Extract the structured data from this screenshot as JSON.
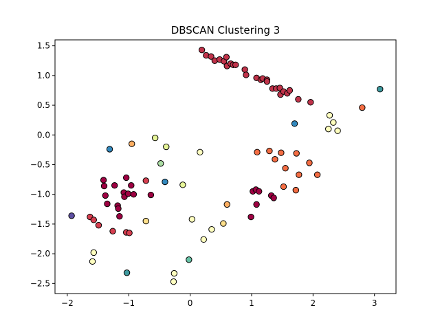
{
  "chart_data": {
    "type": "scatter",
    "title": "DBSCAN Clustering 3",
    "xlabel": "",
    "ylabel": "",
    "xlim": [
      -2.2,
      3.35
    ],
    "ylim": [
      -2.67,
      1.6
    ],
    "xticks": [
      -2,
      -1,
      0,
      1,
      2,
      3
    ],
    "yticks": [
      -2.5,
      -2.0,
      -1.5,
      -1.0,
      -0.5,
      0.0,
      0.5,
      1.0,
      1.5
    ],
    "xtick_labels": [
      "−2",
      "−1",
      "0",
      "1",
      "2",
      "3"
    ],
    "ytick_labels": [
      "−2.5",
      "−2.0",
      "−1.5",
      "−1.0",
      "−0.5",
      "0.0",
      "0.5",
      "1.0",
      "1.5"
    ],
    "grid": false,
    "legend": false,
    "marker_edge_color": "#000000",
    "series": [
      {
        "color": "#c0334a",
        "points": [
          [
            0.19,
            1.43
          ],
          [
            0.26,
            1.34
          ],
          [
            0.34,
            1.32
          ],
          [
            0.4,
            1.25
          ],
          [
            0.48,
            1.27
          ],
          [
            0.55,
            1.24
          ],
          [
            0.59,
            1.31
          ],
          [
            0.6,
            1.16
          ],
          [
            0.66,
            1.2
          ],
          [
            0.7,
            1.18
          ],
          [
            0.74,
            1.18
          ],
          [
            0.89,
            1.1
          ],
          [
            0.91,
            1.01
          ],
          [
            1.08,
            0.96
          ],
          [
            1.15,
            0.93
          ],
          [
            1.18,
            0.95
          ],
          [
            1.25,
            0.93
          ],
          [
            1.25,
            0.9
          ],
          [
            1.34,
            0.78
          ],
          [
            1.4,
            0.78
          ],
          [
            1.46,
            0.79
          ],
          [
            1.47,
            0.68
          ],
          [
            1.52,
            0.73
          ],
          [
            1.58,
            0.7
          ],
          [
            1.62,
            0.75
          ],
          [
            1.76,
            0.6
          ],
          [
            1.96,
            0.55
          ]
        ]
      },
      {
        "color": "#9e0142",
        "points": [
          [
            -1.41,
            -0.76
          ],
          [
            -1.4,
            -0.86
          ],
          [
            -1.38,
            -1.02
          ],
          [
            -1.35,
            -1.16
          ],
          [
            -1.23,
            -0.85
          ],
          [
            -1.18,
            -1.19
          ],
          [
            -1.17,
            -1.24
          ],
          [
            -1.15,
            -1.37
          ],
          [
            -1.08,
            -0.97
          ],
          [
            -1.07,
            -1.04
          ],
          [
            -1.04,
            -0.72
          ],
          [
            -1.01,
            -0.99
          ],
          [
            -0.96,
            -0.85
          ],
          [
            -0.92,
            -1.0
          ],
          [
            -0.64,
            -1.01
          ],
          [
            0.99,
            -1.38
          ],
          [
            1.02,
            -0.95
          ],
          [
            1.07,
            -0.92
          ],
          [
            1.08,
            -1.17
          ],
          [
            1.12,
            -0.95
          ],
          [
            1.32,
            -1.02
          ],
          [
            1.36,
            -1.06
          ]
        ]
      },
      {
        "color": "#d53e4f",
        "points": [
          [
            -1.63,
            -1.38
          ],
          [
            -1.57,
            -1.43
          ],
          [
            -1.49,
            -1.52
          ],
          [
            -1.26,
            -1.62
          ],
          [
            -1.04,
            -1.64
          ],
          [
            -0.99,
            -1.65
          ],
          [
            -0.72,
            -0.77
          ]
        ]
      },
      {
        "color": "#f46d43",
        "points": [
          [
            1.09,
            -0.29
          ],
          [
            1.29,
            -0.27
          ],
          [
            1.38,
            -0.41
          ],
          [
            1.48,
            -0.3
          ],
          [
            1.55,
            -0.56
          ],
          [
            1.52,
            -0.87
          ],
          [
            1.73,
            -0.31
          ],
          [
            1.72,
            -0.93
          ],
          [
            1.77,
            -0.67
          ],
          [
            1.94,
            -0.47
          ],
          [
            2.07,
            -0.67
          ],
          [
            2.8,
            0.46
          ]
        ]
      },
      {
        "color": "#fdae61",
        "points": [
          [
            -0.95,
            -0.15
          ],
          [
            0.6,
            -1.17
          ]
        ]
      },
      {
        "color": "#fee08b",
        "points": [
          [
            -0.72,
            -1.45
          ],
          [
            0.54,
            -1.49
          ]
        ]
      },
      {
        "color": "#ffffbf",
        "points": [
          [
            -1.57,
            -1.98
          ],
          [
            -1.59,
            -2.13
          ],
          [
            -0.26,
            -2.33
          ],
          [
            -0.27,
            -2.47
          ],
          [
            0.03,
            -1.42
          ],
          [
            0.16,
            -0.29
          ],
          [
            0.22,
            -1.76
          ],
          [
            0.35,
            -1.59
          ],
          [
            2.27,
            0.33
          ],
          [
            2.33,
            0.21
          ],
          [
            2.25,
            0.1
          ],
          [
            2.4,
            0.07
          ]
        ]
      },
      {
        "color": "#e6f598",
        "points": [
          [
            -0.57,
            -0.05
          ],
          [
            -0.39,
            -0.2
          ],
          [
            -0.12,
            -0.84
          ]
        ]
      },
      {
        "color": "#abdda4",
        "points": [
          [
            -0.48,
            -0.48
          ]
        ]
      },
      {
        "color": "#66c2a5",
        "points": [
          [
            -0.02,
            -2.1
          ]
        ]
      },
      {
        "color": "#3f9a9f",
        "points": [
          [
            -1.03,
            -2.32
          ],
          [
            3.09,
            0.77
          ]
        ]
      },
      {
        "color": "#3288bd",
        "points": [
          [
            -1.31,
            -0.24
          ],
          [
            -0.41,
            -0.79
          ],
          [
            1.7,
            0.19
          ]
        ]
      },
      {
        "color": "#5e4fa2",
        "points": [
          [
            -1.93,
            -1.36
          ]
        ]
      }
    ]
  }
}
